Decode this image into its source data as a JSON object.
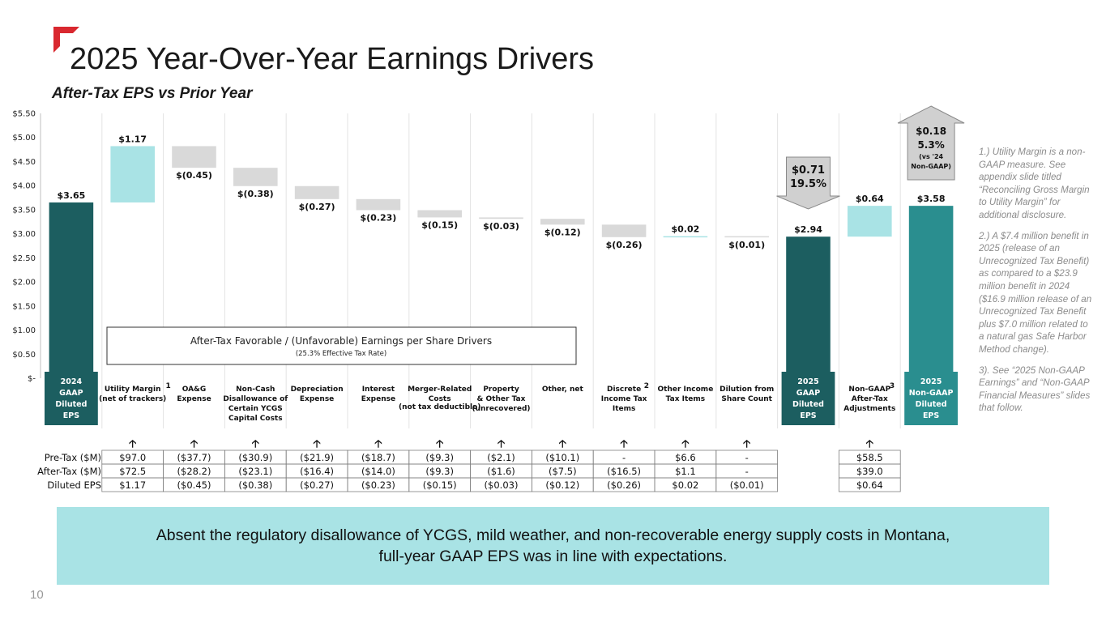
{
  "slide": {
    "title": "2025 Year-Over-Year Earnings Drivers",
    "subtitle": "After-Tax EPS vs Prior Year",
    "page_number": "10",
    "banner": "Absent the regulatory disallowance of YCGS, mild weather, and non-recoverable energy supply costs in Montana, full-year GAAP EPS was in line with expectations.",
    "footnotes": [
      "1.) Utility Margin is a non-GAAP measure. See appendix slide titled “Reconciling Gross Margin to Utility Margin” for additional disclosure.",
      "2.) A $7.4 million benefit in 2025 (release of an Unrecognized Tax Benefit) as compared to a $23.9 million benefit in 2024 ($16.9 million release of an Unrecognized Tax Benefit plus $7.0 million related to a natural gas Safe Harbor Method change).",
      "3). See “2025 Non-GAAP Earnings” and “Non-GAAP Financial Measures” slides that follow."
    ],
    "colors": {
      "accent_red": "#d9282f",
      "dark_teal": "#1c5e60",
      "teal": "#2a8e8f",
      "light_teal": "#a9e3e5",
      "gray_bar": "#d9d9d9"
    }
  },
  "chart_data": {
    "type": "waterfall",
    "ylim": [
      0,
      5.5
    ],
    "y_ticks": [
      {
        "value": 0,
        "label": "$-"
      },
      {
        "value": 0.5,
        "label": "$0.50"
      },
      {
        "value": 1.0,
        "label": "$1.00"
      },
      {
        "value": 1.5,
        "label": "$1.50"
      },
      {
        "value": 2.0,
        "label": "$2.00"
      },
      {
        "value": 2.5,
        "label": "$2.50"
      },
      {
        "value": 3.0,
        "label": "$3.00"
      },
      {
        "value": 3.5,
        "label": "$3.50"
      },
      {
        "value": 4.0,
        "label": "$4.00"
      },
      {
        "value": 4.5,
        "label": "$4.50"
      },
      {
        "value": 5.0,
        "label": "$5.00"
      },
      {
        "value": 5.5,
        "label": "$5.50"
      }
    ],
    "categories": [
      {
        "label": [
          "2024",
          "GAAP",
          "Diluted",
          "EPS"
        ],
        "sup": "",
        "sub": "",
        "style": "total-dark"
      },
      {
        "label": [
          "Utility Margin",
          "(net of trackers)"
        ],
        "sup": "1",
        "sub": "",
        "style": "plain"
      },
      {
        "label": [
          "OA&G",
          "Expense"
        ],
        "sup": "",
        "sub": "",
        "style": "plain"
      },
      {
        "label": [
          "Non-Cash",
          "Disallowance of",
          "Certain YCGS",
          "Capital Costs"
        ],
        "sup": "",
        "sub": "",
        "style": "plain"
      },
      {
        "label": [
          "Depreciation",
          "Expense"
        ],
        "sup": "",
        "sub": "",
        "style": "plain"
      },
      {
        "label": [
          "Interest",
          "Expense"
        ],
        "sup": "",
        "sub": "",
        "style": "plain"
      },
      {
        "label": [
          "Merger-Related",
          "Costs"
        ],
        "sup": "",
        "sub": "(not tax deductible)",
        "style": "plain"
      },
      {
        "label": [
          "Property",
          "& Other Tax",
          "(unrecovered)"
        ],
        "sup": "",
        "sub": "",
        "style": "plain"
      },
      {
        "label": [
          "Other, net"
        ],
        "sup": "",
        "sub": "",
        "style": "plain"
      },
      {
        "label": [
          "Discrete",
          "Income Tax",
          "Items"
        ],
        "sup": "2",
        "sub": "",
        "style": "plain"
      },
      {
        "label": [
          "Other Income",
          "Tax Items"
        ],
        "sup": "",
        "sub": "",
        "style": "plain"
      },
      {
        "label": [
          "Dilution from",
          "Share Count"
        ],
        "sup": "",
        "sub": "",
        "style": "plain"
      },
      {
        "label": [
          "2025",
          "GAAP",
          "Diluted",
          "EPS"
        ],
        "sup": "",
        "sub": "",
        "style": "total-dark"
      },
      {
        "label": [
          "Non-GAAP",
          "After-Tax",
          "Adjustments"
        ],
        "sup": "3",
        "sub": "",
        "style": "plain"
      },
      {
        "label": [
          "2025",
          "Non-GAAP",
          "Diluted",
          "EPS"
        ],
        "sup": "",
        "sub": "",
        "style": "total-teal"
      }
    ],
    "bars": [
      {
        "kind": "total",
        "start": 0,
        "end": 3.65,
        "label": "$3.65",
        "color": "#1c5e60"
      },
      {
        "kind": "delta",
        "start": 3.65,
        "end": 4.82,
        "label": "$1.17",
        "color": "#a9e3e5"
      },
      {
        "kind": "delta",
        "start": 4.82,
        "end": 4.37,
        "label": "$(0.45)",
        "color": "#d9d9d9"
      },
      {
        "kind": "delta",
        "start": 4.37,
        "end": 3.99,
        "label": "$(0.38)",
        "color": "#d9d9d9"
      },
      {
        "kind": "delta",
        "start": 3.99,
        "end": 3.72,
        "label": "$(0.27)",
        "color": "#d9d9d9"
      },
      {
        "kind": "delta",
        "start": 3.72,
        "end": 3.49,
        "label": "$(0.23)",
        "color": "#d9d9d9"
      },
      {
        "kind": "delta",
        "start": 3.49,
        "end": 3.34,
        "label": "$(0.15)",
        "color": "#d9d9d9"
      },
      {
        "kind": "delta",
        "start": 3.34,
        "end": 3.31,
        "label": "$(0.03)",
        "color": "#d9d9d9"
      },
      {
        "kind": "delta",
        "start": 3.31,
        "end": 3.19,
        "label": "$(0.12)",
        "color": "#d9d9d9"
      },
      {
        "kind": "delta",
        "start": 3.19,
        "end": 2.93,
        "label": "$(0.26)",
        "color": "#d9d9d9"
      },
      {
        "kind": "delta",
        "start": 2.93,
        "end": 2.95,
        "label": "$0.02",
        "color": "#a9e3e5"
      },
      {
        "kind": "delta",
        "start": 2.95,
        "end": 2.94,
        "label": "$(0.01)",
        "color": "#d9d9d9"
      },
      {
        "kind": "total",
        "start": 0,
        "end": 2.94,
        "label": "$2.94",
        "color": "#1c5e60"
      },
      {
        "kind": "delta",
        "start": 2.94,
        "end": 3.58,
        "label": "$0.64",
        "color": "#a9e3e5"
      },
      {
        "kind": "total",
        "start": 0,
        "end": 3.58,
        "label": "$3.58",
        "color": "#2a8e8f"
      }
    ],
    "callouts": [
      {
        "category_index": 12,
        "direction": "down",
        "lines": [
          "$0.71",
          "19.5%"
        ]
      },
      {
        "category_index": 14,
        "direction": "up",
        "lines": [
          "$0.18",
          "5.3%",
          "(vs '24",
          "Non-GAAP)"
        ]
      }
    ],
    "drivers_box": {
      "title": "After-Tax Favorable / (Unfavorable) Earnings per Share Drivers",
      "subtitle": "(25.3% Effective Tax Rate)"
    },
    "table": {
      "row_labels": [
        "Pre-Tax ($M)",
        "After-Tax ($M)",
        "Diluted EPS"
      ],
      "arrow_glyph": "🡡",
      "columns": [
        {
          "category_index": 1,
          "values": [
            "$97.0",
            "$72.5",
            "$1.17"
          ],
          "arrow": true
        },
        {
          "category_index": 2,
          "values": [
            "($37.7)",
            "($28.2)",
            "($0.45)"
          ],
          "arrow": true
        },
        {
          "category_index": 3,
          "values": [
            "($30.9)",
            "($23.1)",
            "($0.38)"
          ],
          "arrow": true
        },
        {
          "category_index": 4,
          "values": [
            "($21.9)",
            "($16.4)",
            "($0.27)"
          ],
          "arrow": true
        },
        {
          "category_index": 5,
          "values": [
            "($18.7)",
            "($14.0)",
            "($0.23)"
          ],
          "arrow": true
        },
        {
          "category_index": 6,
          "values": [
            "($9.3)",
            "($9.3)",
            "($0.15)"
          ],
          "arrow": true
        },
        {
          "category_index": 7,
          "values": [
            "($2.1)",
            "($1.6)",
            "($0.03)"
          ],
          "arrow": true
        },
        {
          "category_index": 8,
          "values": [
            "($10.1)",
            "($7.5)",
            "($0.12)"
          ],
          "arrow": true
        },
        {
          "category_index": 9,
          "values": [
            "-",
            "($16.5)",
            "($0.26)"
          ],
          "arrow": true
        },
        {
          "category_index": 10,
          "values": [
            "$6.6",
            "$1.1",
            "$0.02"
          ],
          "arrow": true
        },
        {
          "category_index": 11,
          "values": [
            "-",
            "-",
            "($0.01)"
          ],
          "arrow": true
        },
        {
          "category_index": 13,
          "values": [
            "$58.5",
            "$39.0",
            "$0.64"
          ],
          "arrow": true
        }
      ]
    }
  }
}
